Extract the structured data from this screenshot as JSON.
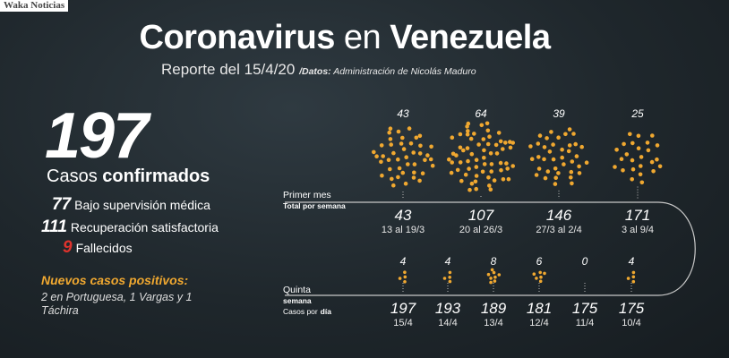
{
  "watermark": "Waka Noticias",
  "header": {
    "title_part1": "Coronavirus",
    "title_part2": "en",
    "title_part3": "Venezuela",
    "report_label": "Reporte del",
    "report_date": "15/4/20",
    "source_prefix": "/Datos:",
    "source": "Administración de Nicolás Maduro"
  },
  "summary": {
    "total": "197",
    "total_label_light": "Casos",
    "total_label_bold": "confirmados",
    "rows": [
      {
        "value": "77",
        "label": "Bajo supervisión médica"
      },
      {
        "value": "111",
        "label": "Recuperación satisfactoria"
      },
      {
        "value": "9",
        "label": "Fallecidos"
      }
    ]
  },
  "new_cases": {
    "title": "Nuevos casos positivos:",
    "text": "2 en Portuguesa, 1 Vargas y 1 Táchira"
  },
  "weekly_section": {
    "label_line1": "Primer mes",
    "label_line2": "Total por semana"
  },
  "daily_section": {
    "label_line1": "Quinta",
    "label_line2": "semana",
    "label_line3a": "Casos por",
    "label_line3b": "día"
  },
  "colors": {
    "accent_orange": "#f0a830",
    "red": "#e0332d",
    "background": "#1f272c"
  },
  "chart_data": [
    {
      "type": "scatter",
      "title": "Primer mes — Total por semana",
      "categories": [
        "13 al 19/3",
        "20 al 26/3",
        "27/3 al 2/4",
        "3 al 9/4"
      ],
      "series": [
        {
          "name": "",
          "values": [
            43,
            64,
            39,
            25
          ]
        }
      ],
      "cumulative": [
        "43",
        "107",
        "146",
        "171"
      ],
      "value_labels": [
        "43",
        "64",
        "39",
        "25"
      ]
    },
    {
      "type": "scatter",
      "title": "Quinta semana — Casos por día",
      "categories": [
        "15/4",
        "14/4",
        "13/4",
        "12/4",
        "11/4",
        "10/4"
      ],
      "series": [
        {
          "name": "",
          "values": [
            4,
            4,
            8,
            6,
            0,
            4
          ]
        }
      ],
      "cumulative": [
        "197",
        "193",
        "189",
        "181",
        "175",
        "175"
      ],
      "value_labels": [
        "4",
        "4",
        "8",
        "6",
        "0",
        "4"
      ]
    }
  ]
}
